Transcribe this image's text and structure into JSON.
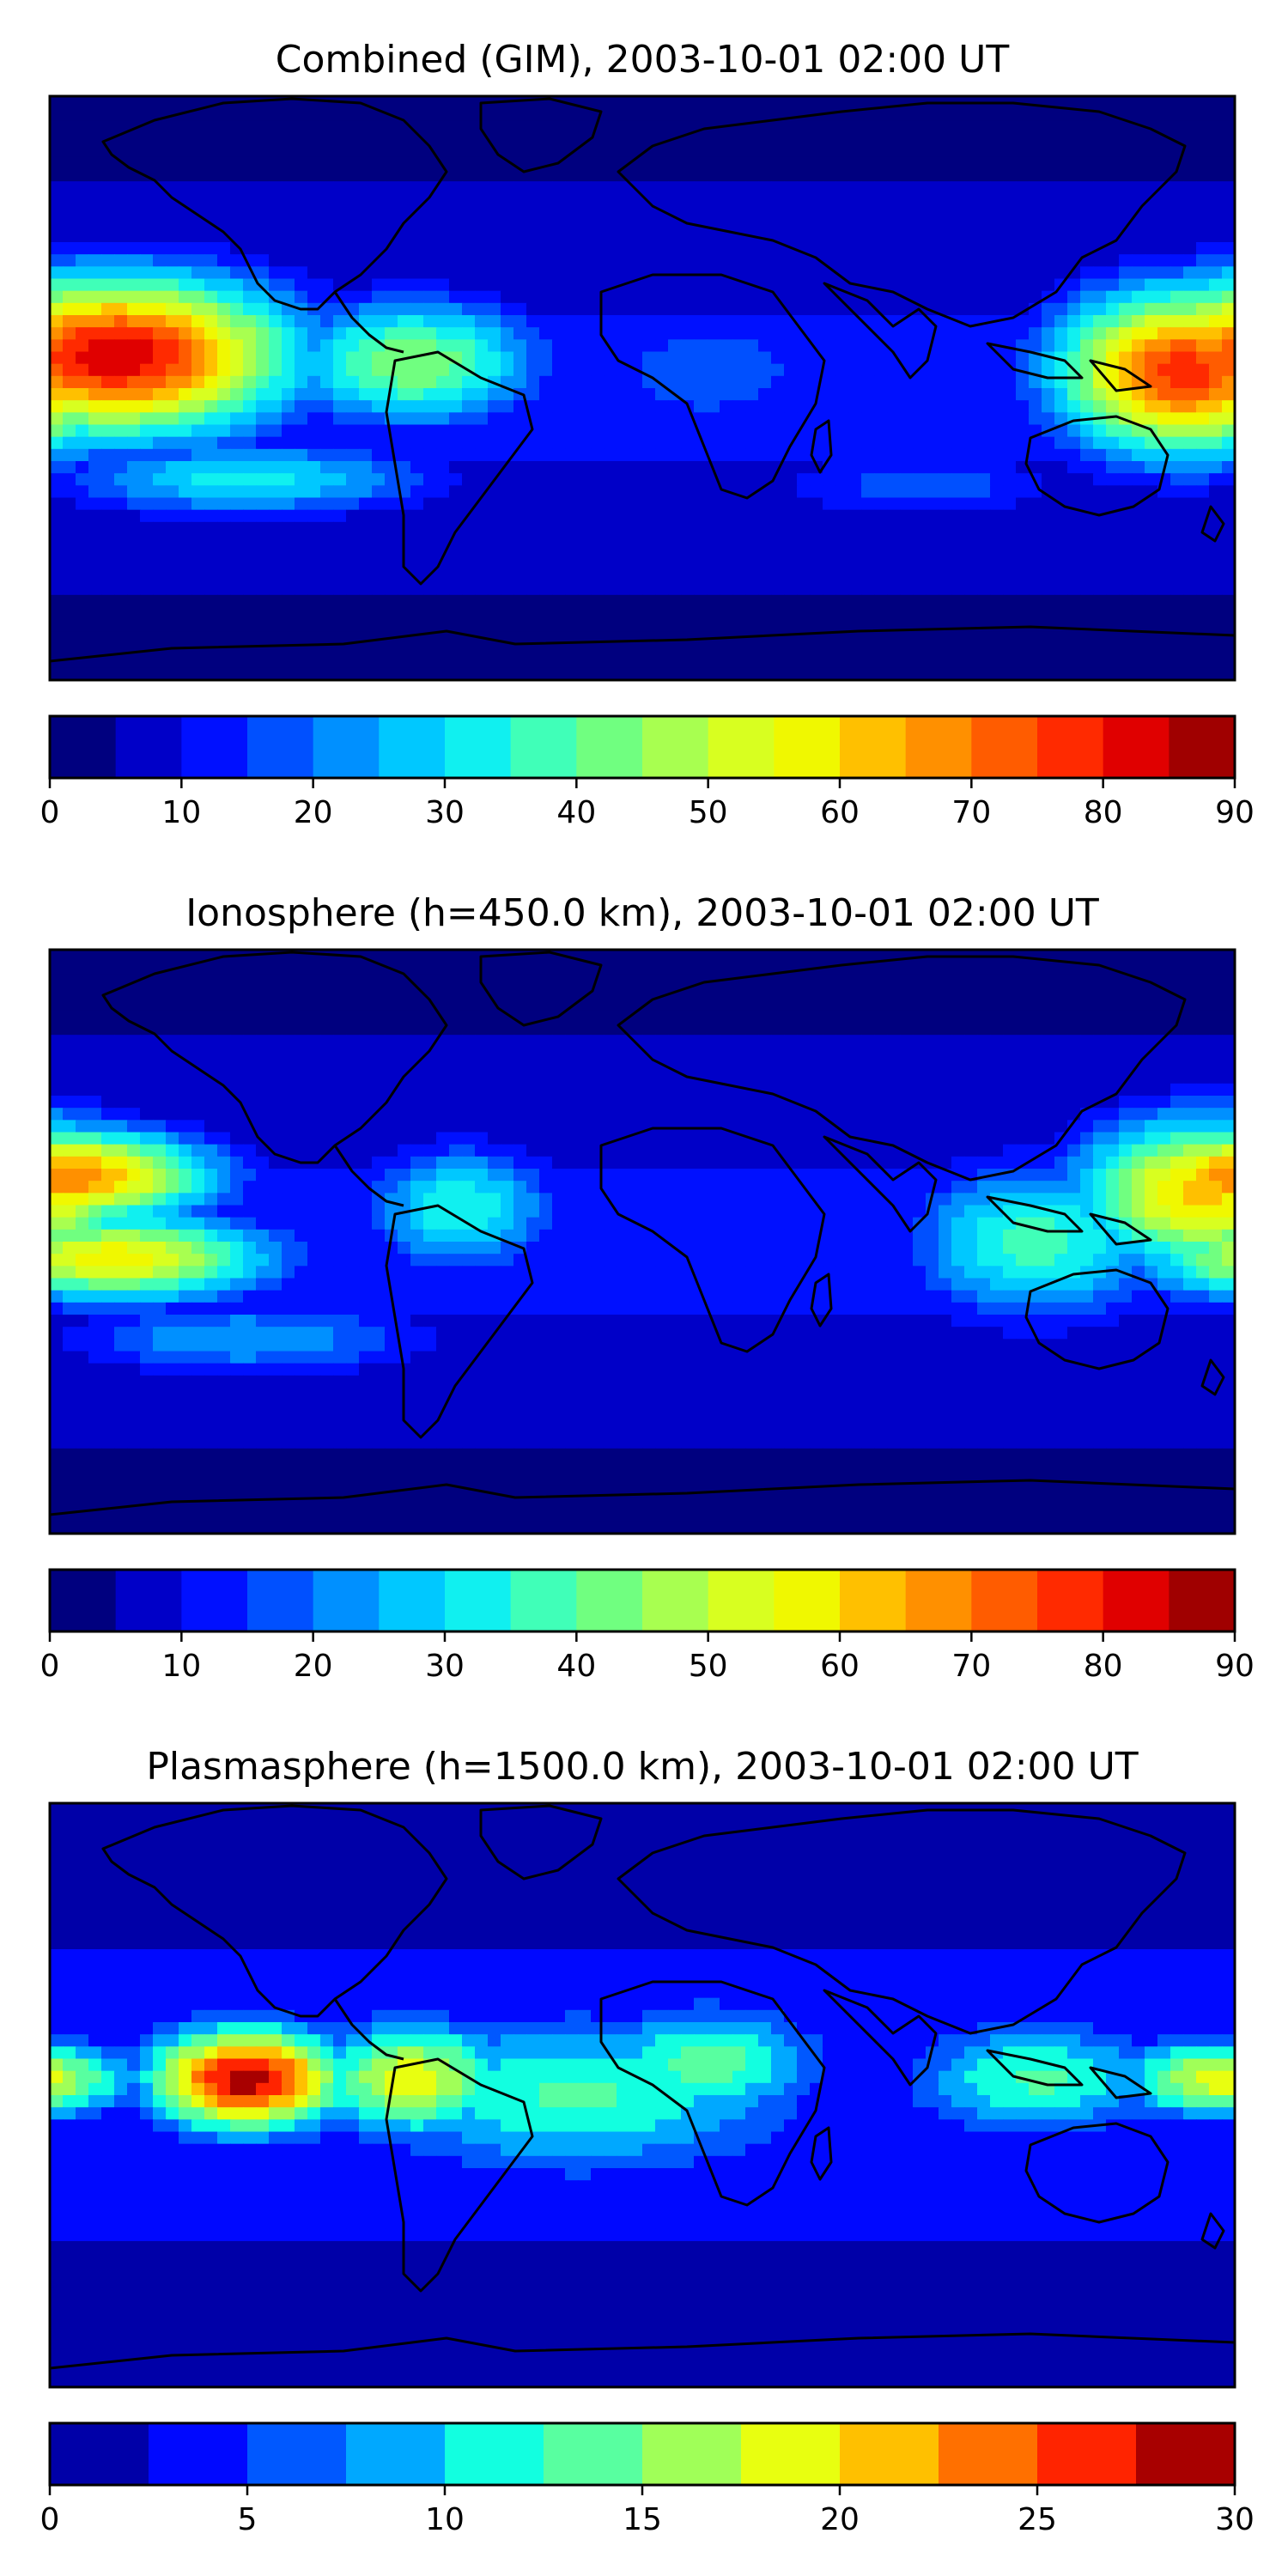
{
  "chart_data": [
    {
      "type": "heatmap",
      "title": "Combined (GIM), 2003-10-01 02:00 UT",
      "colorbar": {
        "min": 0,
        "max": 90,
        "step": 5,
        "ticks": [
          0,
          10,
          20,
          30,
          40,
          50,
          60,
          70,
          80,
          90
        ]
      },
      "colors": [
        "#00007f",
        "#0000c8",
        "#0010ff",
        "#0050ff",
        "#0090ff",
        "#00c8ff",
        "#10f0f0",
        "#40ffb8",
        "#70ff80",
        "#a8ff50",
        "#d8ff20",
        "#f0f800",
        "#ffc000",
        "#ff9000",
        "#ff5c00",
        "#ff2a00",
        "#e00000",
        "#a00000"
      ],
      "features": [
        {
          "name": "pacific-anomaly",
          "lon": -160,
          "lat": 10,
          "peak": 84,
          "rlon": 55,
          "rlat": 25
        },
        {
          "name": "west-pacific-anomaly",
          "lon": 165,
          "lat": 5,
          "peak": 78,
          "rlon": 40,
          "rlat": 26
        },
        {
          "name": "south-america-band",
          "lon": -70,
          "lat": 8,
          "peak": 45,
          "rlon": 40,
          "rlat": 20
        },
        {
          "name": "southern-band",
          "lon": -120,
          "lat": -28,
          "peak": 32,
          "rlon": 60,
          "rlat": 12
        },
        {
          "name": "africa-band",
          "lon": 20,
          "lat": 5,
          "peak": 20,
          "rlon": 40,
          "rlat": 20
        },
        {
          "name": "indian-band",
          "lon": 85,
          "lat": -30,
          "peak": 18,
          "rlon": 50,
          "rlat": 12
        }
      ]
    },
    {
      "type": "heatmap",
      "title": "Ionosphere  (h=450.0 km), 2003-10-01 02:00 UT",
      "colorbar": {
        "min": 0,
        "max": 90,
        "step": 5,
        "ticks": [
          0,
          10,
          20,
          30,
          40,
          50,
          60,
          70,
          80,
          90
        ]
      },
      "colors": [
        "#00007f",
        "#0000c8",
        "#0010ff",
        "#0050ff",
        "#0090ff",
        "#00c8ff",
        "#10f0f0",
        "#40ffb8",
        "#70ff80",
        "#a8ff50",
        "#d8ff20",
        "#f0f800",
        "#ffc000",
        "#ff9000",
        "#ff5c00",
        "#ff2a00",
        "#e00000",
        "#a00000"
      ],
      "features": [
        {
          "name": "pacific-anomaly",
          "lon": -175,
          "lat": 20,
          "peak": 70,
          "rlon": 45,
          "rlat": 15
        },
        {
          "name": "pacific-south",
          "lon": -160,
          "lat": -5,
          "peak": 58,
          "rlon": 50,
          "rlat": 14
        },
        {
          "name": "west-pacific-anomaly",
          "lon": 170,
          "lat": 15,
          "peak": 62,
          "rlon": 40,
          "rlat": 24
        },
        {
          "name": "asia-band",
          "lon": 120,
          "lat": 0,
          "peak": 38,
          "rlon": 40,
          "rlat": 25
        },
        {
          "name": "south-america-band",
          "lon": -55,
          "lat": 10,
          "peak": 35,
          "rlon": 30,
          "rlat": 20
        },
        {
          "name": "southern-band",
          "lon": -120,
          "lat": -30,
          "peak": 25,
          "rlon": 60,
          "rlat": 12
        }
      ]
    },
    {
      "type": "heatmap",
      "title": "Plasmasphere (h=1500.0 km), 2003-10-01 02:00 UT",
      "colorbar": {
        "min": 0,
        "max": 30,
        "step": 2.5,
        "ticks": [
          0,
          5,
          10,
          15,
          20,
          25,
          30
        ]
      },
      "colors": [
        "#0000a8",
        "#0008ff",
        "#0058ff",
        "#00a8ff",
        "#12ffe0",
        "#58ffa0",
        "#a0ff58",
        "#e8ff10",
        "#ffc000",
        "#ff7000",
        "#ff2400",
        "#a80000"
      ],
      "features": [
        {
          "name": "pacific-anomaly",
          "lon": -120,
          "lat": 5,
          "peak": 29,
          "rlon": 30,
          "rlat": 16
        },
        {
          "name": "south-america-band",
          "lon": -70,
          "lat": 5,
          "peak": 19,
          "rlon": 30,
          "rlat": 18
        },
        {
          "name": "atlantic-band",
          "lon": -20,
          "lat": 0,
          "peak": 13,
          "rlon": 70,
          "rlat": 25
        },
        {
          "name": "africa-band",
          "lon": 20,
          "lat": 10,
          "peak": 14,
          "rlon": 35,
          "rlat": 18
        },
        {
          "name": "west-pacific-anomaly",
          "lon": 175,
          "lat": 5,
          "peak": 19,
          "rlon": 30,
          "rlat": 12
        },
        {
          "name": "asia-band",
          "lon": 120,
          "lat": 5,
          "peak": 13,
          "rlon": 40,
          "rlat": 18
        }
      ]
    }
  ]
}
